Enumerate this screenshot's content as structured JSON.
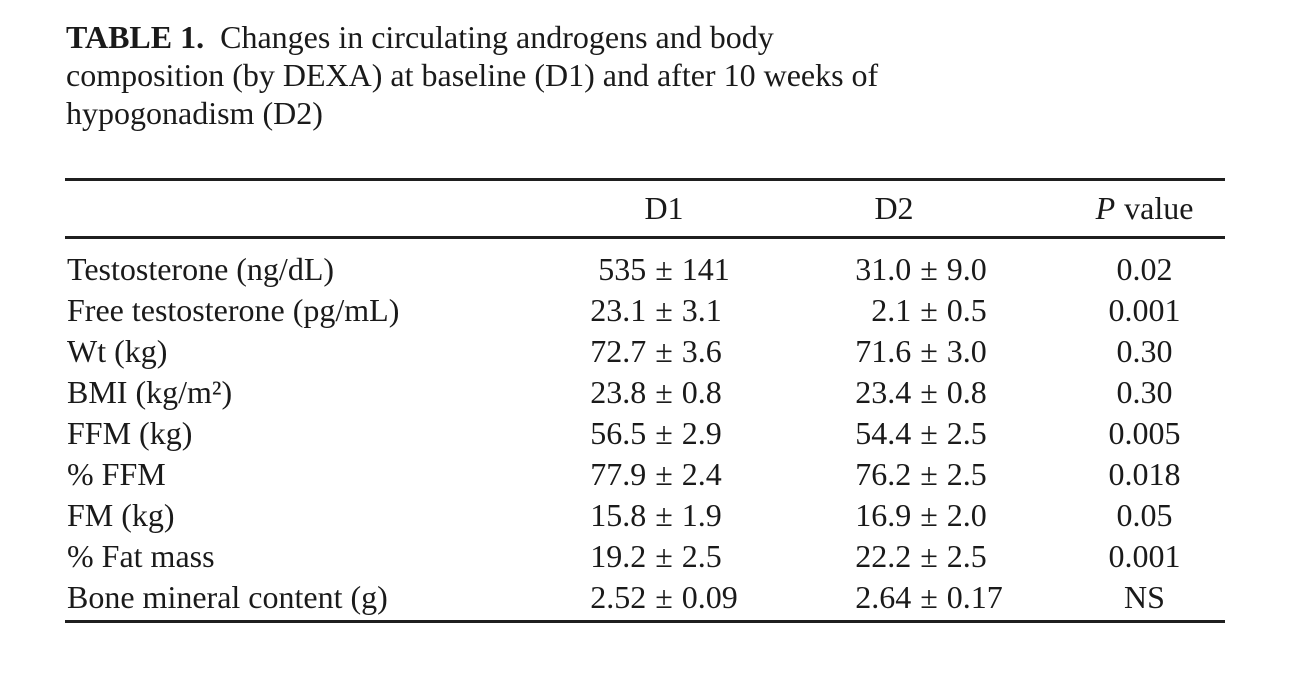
{
  "page": {
    "background": "#ffffff",
    "text_color": "#1a1a1a"
  },
  "caption": {
    "label": "TABLE 1.",
    "line1_rest": "Changes in circulating androgens and body",
    "line2": "composition (by DEXA) at baseline (D1) and after 10 weeks of",
    "line3": "hypogonadism (D2)"
  },
  "table": {
    "plus_minus": "±",
    "header": {
      "d1": "D1",
      "d2": "D2",
      "p_italic": "P",
      "p_rest": "value"
    },
    "rows": [
      {
        "label": "Testosterone (ng/dL)",
        "d1_mean": "535",
        "d1_sd": "141",
        "d2_mean": "31.0",
        "d2_sd": "9.0",
        "p": "0.02"
      },
      {
        "label": "Free testosterone (pg/mL)",
        "d1_mean": "23.1",
        "d1_sd": "3.1",
        "d2_mean": "2.1",
        "d2_sd": "0.5",
        "p": "0.001"
      },
      {
        "label": "Wt (kg)",
        "d1_mean": "72.7",
        "d1_sd": "3.6",
        "d2_mean": "71.6",
        "d2_sd": "3.0",
        "p": "0.30"
      },
      {
        "label": "BMI (kg/m²)",
        "d1_mean": "23.8",
        "d1_sd": "0.8",
        "d2_mean": "23.4",
        "d2_sd": "0.8",
        "p": "0.30"
      },
      {
        "label": "FFM (kg)",
        "d1_mean": "56.5",
        "d1_sd": "2.9",
        "d2_mean": "54.4",
        "d2_sd": "2.5",
        "p": "0.005"
      },
      {
        "label": "% FFM",
        "d1_mean": "77.9",
        "d1_sd": "2.4",
        "d2_mean": "76.2",
        "d2_sd": "2.5",
        "p": "0.018"
      },
      {
        "label": "FM (kg)",
        "d1_mean": "15.8",
        "d1_sd": "1.9",
        "d2_mean": "16.9",
        "d2_sd": "2.0",
        "p": "0.05"
      },
      {
        "label": "% Fat mass",
        "d1_mean": "19.2",
        "d1_sd": "2.5",
        "d2_mean": "22.2",
        "d2_sd": "2.5",
        "p": "0.001"
      },
      {
        "label": "Bone mineral content (g)",
        "d1_mean": "2.52",
        "d1_sd": "0.09",
        "d2_mean": "2.64",
        "d2_sd": "0.17",
        "p": "NS"
      }
    ]
  }
}
